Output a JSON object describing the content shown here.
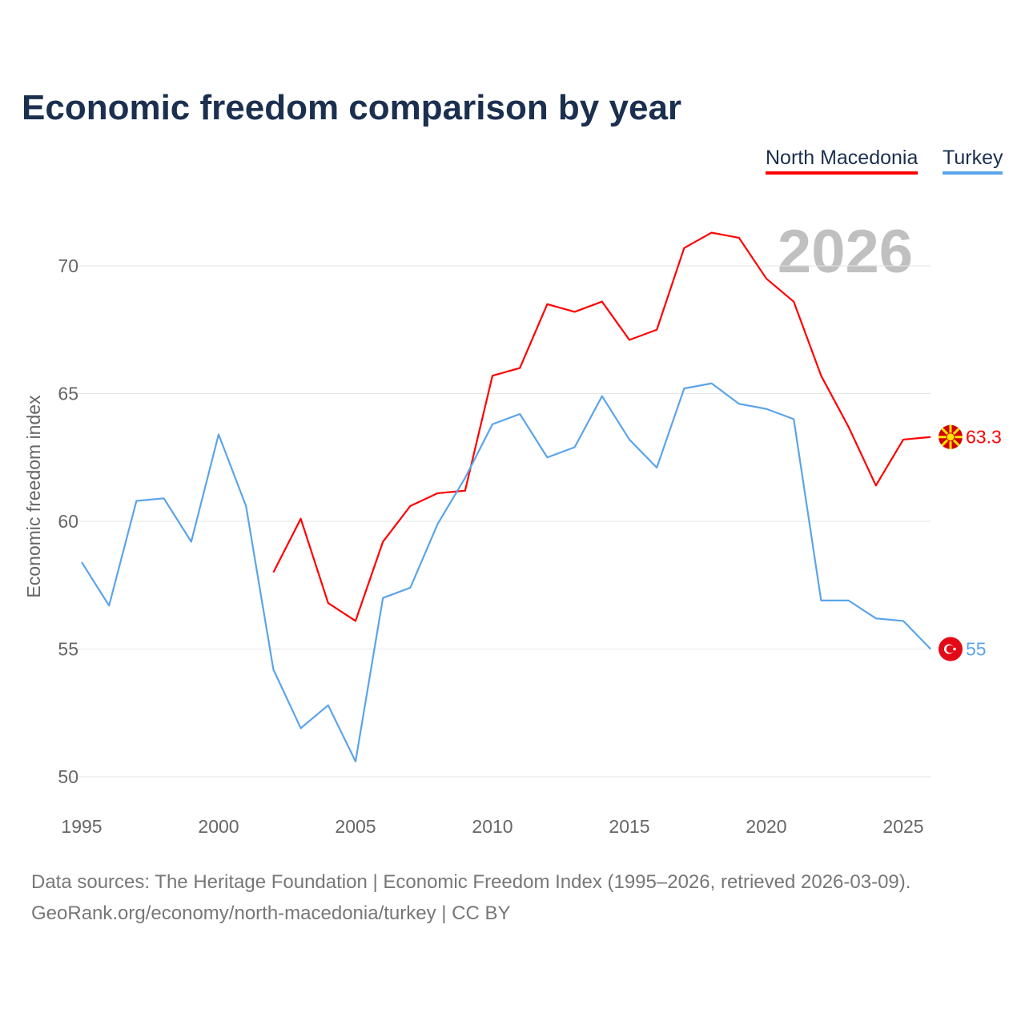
{
  "chart_data": {
    "type": "line",
    "title": "Economic freedom comparison by year",
    "xlabel": "",
    "ylabel": "Economic freedom index",
    "xlim": [
      1995,
      2026
    ],
    "ylim": [
      50,
      72
    ],
    "x_ticks": [
      1995,
      2000,
      2005,
      2010,
      2015,
      2020,
      2025
    ],
    "y_ticks": [
      50,
      55,
      60,
      65,
      70
    ],
    "grid": true,
    "legend_position": "top-right",
    "year_watermark": "2026",
    "series": [
      {
        "name": "North Macedonia",
        "color": "#ff0000",
        "end_label": "63.3",
        "x": [
          2002,
          2003,
          2004,
          2005,
          2006,
          2007,
          2008,
          2009,
          2010,
          2011,
          2012,
          2013,
          2014,
          2015,
          2016,
          2017,
          2018,
          2019,
          2020,
          2021,
          2022,
          2023,
          2024,
          2025,
          2026
        ],
        "values": [
          58.0,
          60.1,
          56.8,
          56.1,
          59.2,
          60.6,
          61.1,
          61.2,
          65.7,
          66.0,
          68.5,
          68.2,
          68.6,
          67.1,
          67.5,
          70.7,
          71.3,
          71.1,
          69.5,
          68.6,
          65.7,
          63.7,
          61.4,
          63.2,
          63.3
        ]
      },
      {
        "name": "Turkey",
        "color": "#5ba4ea",
        "end_label": "55",
        "x": [
          1995,
          1996,
          1997,
          1998,
          1999,
          2000,
          2001,
          2002,
          2003,
          2004,
          2005,
          2006,
          2007,
          2008,
          2009,
          2010,
          2011,
          2012,
          2013,
          2014,
          2015,
          2016,
          2017,
          2018,
          2019,
          2020,
          2021,
          2022,
          2023,
          2024,
          2025,
          2026
        ],
        "values": [
          58.4,
          56.7,
          60.8,
          60.9,
          59.2,
          63.4,
          60.6,
          54.2,
          51.9,
          52.8,
          50.6,
          57.0,
          57.4,
          59.9,
          61.7,
          63.8,
          64.2,
          62.5,
          62.9,
          64.9,
          63.2,
          62.1,
          65.2,
          65.4,
          64.6,
          64.4,
          64.0,
          56.9,
          56.9,
          56.2,
          56.1,
          55.0
        ]
      }
    ]
  },
  "footer": {
    "sources": "Data sources: The Heritage Foundation | Economic Freedom Index (1995–2026, retrieved 2026-03-09).",
    "credit": "GeoRank.org/economy/north-macedonia/turkey | CC BY"
  }
}
